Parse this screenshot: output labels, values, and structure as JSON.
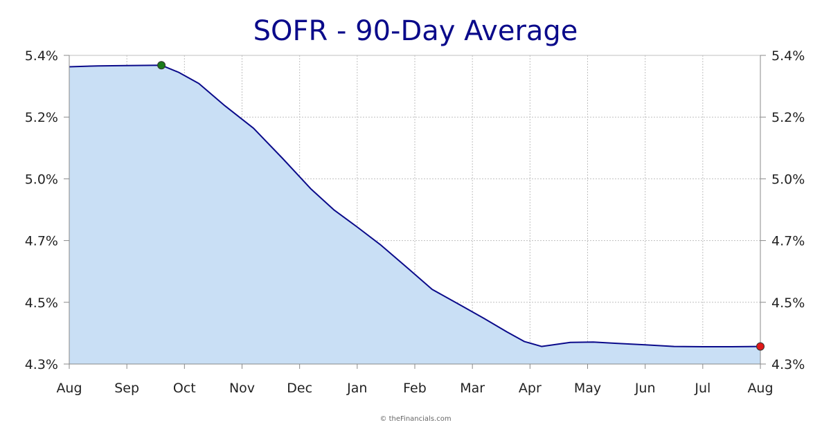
{
  "chart_data": {
    "type": "area",
    "title": "SOFR - 90-Day Average",
    "xlabel": "",
    "ylabel": "",
    "ylim": [
      4.3,
      5.4
    ],
    "y_ticks": [
      4.3,
      4.5,
      4.7,
      5.0,
      5.2,
      5.4
    ],
    "y_tick_labels": [
      "4.3%",
      "4.5%",
      "4.7%",
      "5.0%",
      "5.2%",
      "5.4%"
    ],
    "x_tick_labels": [
      "Aug",
      "Sep",
      "Oct",
      "Nov",
      "Dec",
      "Jan",
      "Feb",
      "Mar",
      "Apr",
      "May",
      "Jun",
      "Jul",
      "Aug"
    ],
    "x_range_months": [
      0,
      12
    ],
    "grid": true,
    "series": [
      {
        "name": "SOFR 90-Day Average (%)",
        "x": [
          0,
          0.5,
          1.0,
          1.6,
          1.9,
          2.25,
          2.7,
          3.2,
          3.7,
          4.2,
          4.6,
          5.0,
          5.4,
          5.9,
          6.3,
          6.8,
          7.2,
          7.6,
          7.9,
          8.2,
          8.7,
          9.1,
          9.5,
          10.0,
          10.5,
          11.0,
          11.5,
          12.0
        ],
        "values": [
          5.363,
          5.366,
          5.367,
          5.368,
          5.345,
          5.309,
          5.237,
          5.164,
          5.067,
          4.95,
          4.848,
          4.766,
          4.687,
          4.607,
          4.542,
          4.49,
          4.448,
          4.404,
          4.373,
          4.357,
          4.37,
          4.371,
          4.367,
          4.362,
          4.357,
          4.356,
          4.356,
          4.357
        ]
      }
    ],
    "markers": [
      {
        "label": "high",
        "x": 1.6,
        "value": 5.368,
        "color": "#1a7a1a"
      },
      {
        "label": "last",
        "x": 12.0,
        "value": 4.357,
        "color": "#e01818"
      }
    ],
    "fill_color": "#c9dff5",
    "line_color": "#0a0a8a"
  },
  "footer": {
    "credit": "© theFinancials.com"
  }
}
